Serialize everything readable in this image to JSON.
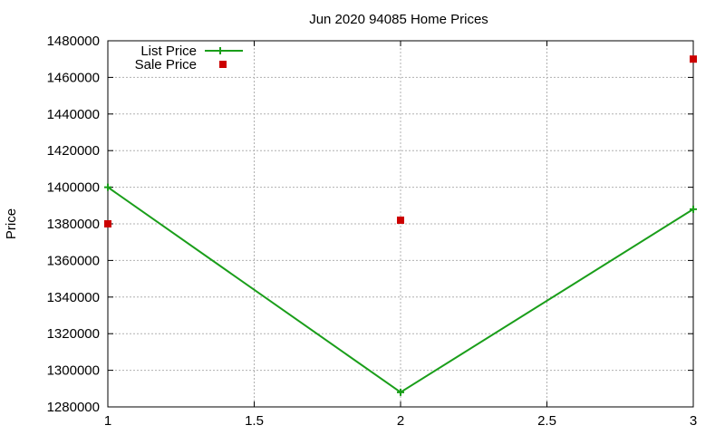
{
  "chart_data": {
    "type": "line",
    "title": "Jun 2020 94085 Home Prices",
    "xlabel": "",
    "ylabel": "Price",
    "xlim": [
      1,
      3
    ],
    "ylim": [
      1280000,
      1480000
    ],
    "x_ticks": [
      "1",
      "1.5",
      "2",
      "2.5",
      "3"
    ],
    "y_ticks": [
      "1280000",
      "1300000",
      "1320000",
      "1340000",
      "1360000",
      "1380000",
      "1400000",
      "1420000",
      "1440000",
      "1460000",
      "1480000"
    ],
    "grid": true,
    "legend_position": "top-left",
    "series": [
      {
        "name": "List Price",
        "style": "line-with-plus-markers",
        "color": "#1a9e1a",
        "x": [
          1,
          2,
          3
        ],
        "y": [
          1400000,
          1288000,
          1388000
        ]
      },
      {
        "name": "Sale Price",
        "style": "square-markers",
        "color": "#cc0000",
        "x": [
          1,
          2,
          3
        ],
        "y": [
          1380000,
          1382000,
          1470000
        ]
      }
    ]
  }
}
